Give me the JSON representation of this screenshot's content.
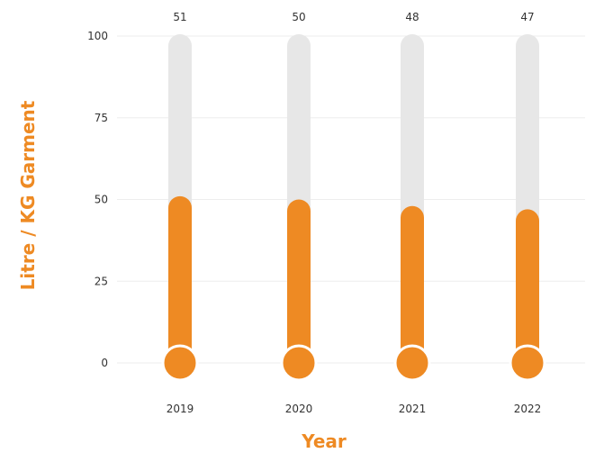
{
  "colors": {
    "bar_fill": "#EE8A23",
    "track": "#E7E7E7",
    "grid": "#EDEDED",
    "axis_title": "#EE8A23"
  },
  "chart_data": {
    "type": "bar",
    "style": "thermometer",
    "categories": [
      "2019",
      "2020",
      "2021",
      "2022"
    ],
    "values": [
      51,
      50,
      48,
      47
    ],
    "data_labels": [
      "51",
      "50",
      "48",
      "47"
    ],
    "xlabel": "Year",
    "ylabel": "Litre / KG Garment",
    "ylim": [
      0,
      100
    ],
    "yticks": [
      0,
      25,
      50,
      75,
      100
    ],
    "ytick_labels": [
      "0",
      "25",
      "50",
      "75",
      "100"
    ],
    "grid": true
  }
}
